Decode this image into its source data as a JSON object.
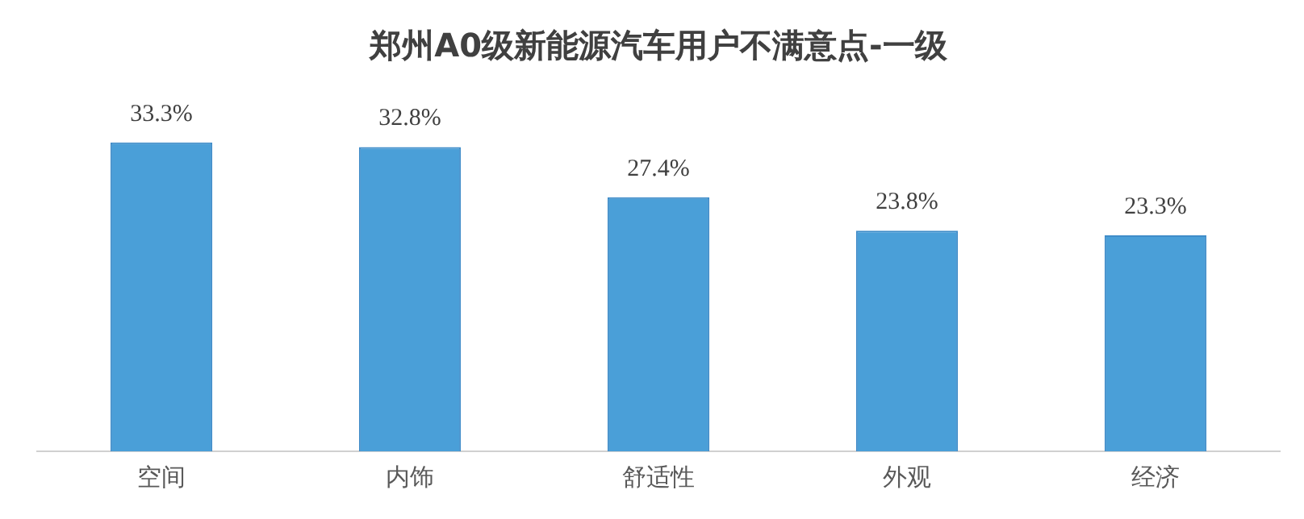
{
  "chart_data": {
    "type": "bar",
    "title": "郑州A0级新能源汽车用户不满意点-一级",
    "categories": [
      "空间",
      "内饰",
      "舒适性",
      "外观",
      "经济"
    ],
    "values": [
      33.3,
      32.8,
      27.4,
      23.8,
      23.3
    ],
    "value_labels": [
      "33.3%",
      "32.8%",
      "27.4%",
      "23.8%",
      "23.3%"
    ],
    "color": "#4a9fd8",
    "grid": false,
    "legend": false
  }
}
